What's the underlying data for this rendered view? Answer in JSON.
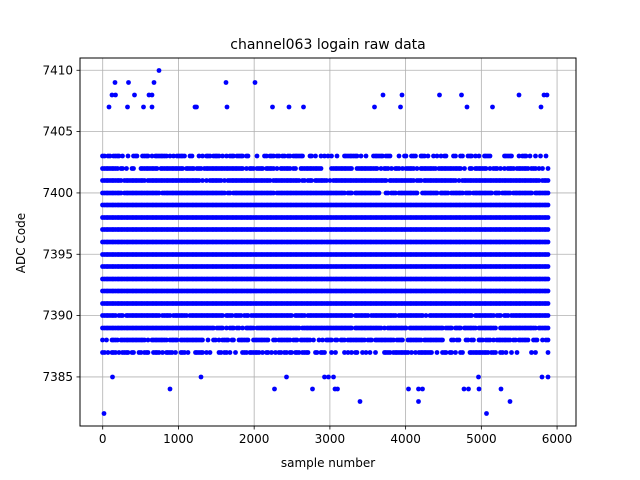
{
  "chart_data": {
    "type": "scatter",
    "title": "channel063 logain raw data",
    "xlabel": "sample number",
    "ylabel": "ADC Code",
    "xlim": [
      -300,
      6250
    ],
    "ylim": [
      7381,
      7411
    ],
    "xticks": [
      0,
      1000,
      2000,
      3000,
      4000,
      5000,
      6000
    ],
    "yticks": [
      7385,
      7390,
      7395,
      7400,
      7405,
      7410
    ],
    "grid": true,
    "marker_color": "#0000ff",
    "marker": "filled-circle",
    "sample_count": 5900,
    "y_dense_range": [
      7387,
      7403
    ],
    "y_mode": 7395,
    "series": [
      {
        "points": [
          [
            20,
            7382
          ],
          [
            5070,
            7382
          ],
          [
            3400,
            7383
          ],
          [
            4170,
            7383
          ],
          [
            5380,
            7383
          ],
          [
            130,
            7385
          ],
          [
            1300,
            7385
          ],
          [
            2430,
            7385
          ],
          [
            2930,
            7385
          ],
          [
            2980,
            7385
          ],
          [
            3050,
            7385
          ],
          [
            4960,
            7385
          ],
          [
            5800,
            7385
          ],
          [
            5880,
            7385
          ],
          [
            890,
            7384
          ],
          [
            2270,
            7384
          ],
          [
            2770,
            7384
          ],
          [
            3070,
            7384
          ],
          [
            3100,
            7384
          ],
          [
            4040,
            7384
          ],
          [
            4170,
            7384
          ],
          [
            4220,
            7384
          ],
          [
            4770,
            7384
          ],
          [
            4830,
            7384
          ],
          [
            4970,
            7384
          ],
          [
            5260,
            7384
          ],
          [
            80,
            7407
          ],
          [
            330,
            7407
          ],
          [
            540,
            7407
          ],
          [
            650,
            7407
          ],
          [
            1220,
            7407
          ],
          [
            1240,
            7407
          ],
          [
            1640,
            7407
          ],
          [
            2240,
            7407
          ],
          [
            2460,
            7407
          ],
          [
            2650,
            7407
          ],
          [
            3590,
            7407
          ],
          [
            3930,
            7407
          ],
          [
            4810,
            7407
          ],
          [
            5150,
            7407
          ],
          [
            5790,
            7407
          ],
          [
            120,
            7408
          ],
          [
            170,
            7408
          ],
          [
            420,
            7408
          ],
          [
            610,
            7408
          ],
          [
            650,
            7408
          ],
          [
            3700,
            7408
          ],
          [
            3950,
            7408
          ],
          [
            4450,
            7408
          ],
          [
            4740,
            7408
          ],
          [
            5500,
            7408
          ],
          [
            5830,
            7408
          ],
          [
            5870,
            7408
          ],
          [
            160,
            7409
          ],
          [
            340,
            7409
          ],
          [
            680,
            7409
          ],
          [
            1630,
            7409
          ],
          [
            2010,
            7409
          ],
          [
            740,
            7410
          ]
        ]
      }
    ]
  }
}
